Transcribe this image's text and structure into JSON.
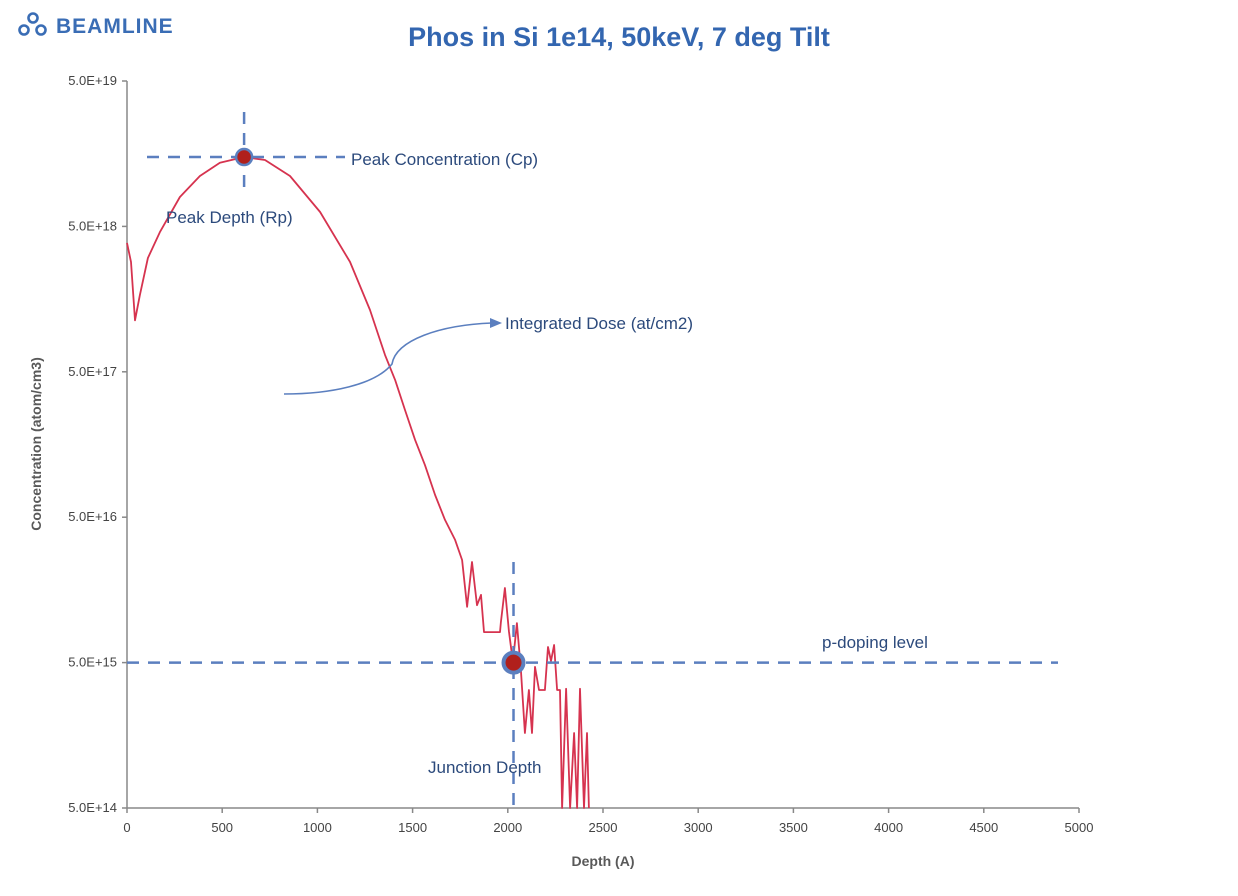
{
  "brand": {
    "logo_text": "BEAMLINE",
    "color": "#3a6db5"
  },
  "chart_data": {
    "type": "line",
    "title": "Phos in Si 1e14, 50keV, 7 deg Tilt",
    "xlabel": "Depth (A)",
    "ylabel": "Concentration (atom/cm3)",
    "xlim": [
      0,
      5000
    ],
    "ylim": [
      500000000000000.0,
      5e+19
    ],
    "yscale": "log",
    "grid": false,
    "xticks": [
      "0",
      "500",
      "1000",
      "1500",
      "2000",
      "2500",
      "3000",
      "3500",
      "4000",
      "4500",
      "5000"
    ],
    "yticks": [
      "5.0E+19",
      "5.0E+18",
      "5.0E+17",
      "5.0E+16",
      "5.0E+15",
      "5.0E+14"
    ],
    "series": [
      {
        "color": "#d6334f",
        "x": [
          0,
          21,
          42,
          68,
          110,
          173,
          278,
          383,
          488,
          615,
          725,
          856,
          1014,
          1171,
          1276,
          1355,
          1408,
          1460,
          1513,
          1565,
          1618,
          1670,
          1723,
          1760,
          1786,
          1812,
          1838,
          1859,
          1875,
          1959,
          1964,
          1985,
          2006,
          2027,
          2048,
          2069,
          2090,
          2111,
          2127,
          2143,
          2164,
          2195,
          2211,
          2227,
          2243,
          2259,
          2274,
          2285,
          2306,
          2327,
          2348,
          2364,
          2379,
          2400,
          2416,
          2426
        ],
        "y": [
          3.85e+18,
          2.85e+18,
          1.13e+18,
          1.69e+18,
          3.03e+18,
          4.57e+18,
          7.96e+18,
          1.11e+19,
          1.37e+19,
          1.5e+19,
          1.43e+19,
          1.11e+19,
          6.28e+18,
          2.85e+18,
          1.33e+18,
          6.53e+17,
          4.4e+17,
          2.73e+17,
          1.7e+17,
          1.14e+17,
          7.11e+16,
          4.79e+16,
          3.49e+16,
          2.54e+16,
          1.21e+16,
          2.46e+16,
          1.24e+16,
          1.46e+16,
          8110000000000000.0,
          8110000000000000.0,
          9500000000000000.0,
          1.63e+16,
          8240000000000000.0,
          5050000000000000.0,
          9350000000000000.0,
          4450000000000000.0,
          1640000000000000.0,
          3240000000000000.0,
          1640000000000000.0,
          4670000000000000.0,
          3240000000000000.0,
          3240000000000000.0,
          6400000000000000.0,
          5130000000000000.0,
          6610000000000000.0,
          3240000000000000.0,
          3240000000000000.0,
          500000000000000.0,
          3300000000000000.0,
          500000000000000.0,
          1640000000000000.0,
          500000000000000.0,
          3300000000000000.0,
          500000000000000.0,
          1640000000000000.0,
          500000000000000.0
        ]
      }
    ],
    "markers": [
      {
        "x": 615,
        "y": 1.5e+19
      },
      {
        "x": 2030,
        "y": 5000000000000000.0
      }
    ],
    "annotations": {
      "peak_concentration": "Peak Concentration (Cp)",
      "peak_depth": "Peak Depth (Rp)",
      "integrated_dose": "Integrated Dose (at/cm2)",
      "p_doping": "p-doping level",
      "junction_depth": "Junction Depth"
    },
    "colors": {
      "annotation_line": "#5b7fbf",
      "marker_fill": "#b0201c"
    }
  }
}
